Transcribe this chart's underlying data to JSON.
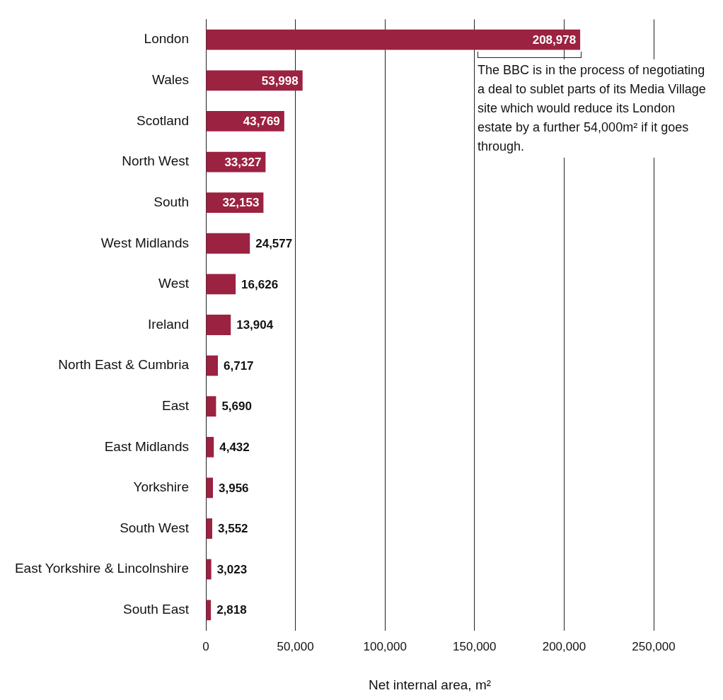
{
  "chart_data": {
    "type": "bar",
    "orientation": "horizontal",
    "xlabel": "Net internal area, m²",
    "categories": [
      "London",
      "Wales",
      "Scotland",
      "North West",
      "South",
      "West Midlands",
      "West",
      "Ireland",
      "North East & Cumbria",
      "East",
      "East Midlands",
      "Yorkshire",
      "South West",
      "East Yorkshire & Lincolnshire",
      "South East"
    ],
    "values": [
      208978,
      53998,
      43769,
      33327,
      32153,
      24577,
      16626,
      13904,
      6717,
      5690,
      4432,
      3956,
      3552,
      3023,
      2818
    ],
    "color": "#9b2240",
    "xlim": [
      0,
      250000
    ],
    "xticks": [
      {
        "value": 0,
        "label": "0"
      },
      {
        "value": 50000,
        "label": "50,000"
      },
      {
        "value": 100000,
        "label": "100,000"
      },
      {
        "value": 150000,
        "label": "150,000"
      },
      {
        "value": 200000,
        "label": "200,000"
      },
      {
        "value": 250000,
        "label": "250,000"
      }
    ],
    "value_labels": [
      "208,978",
      "53,998",
      "43,769",
      "33,327",
      "32,153",
      "24,577",
      "16,626",
      "13,904",
      "6,717",
      "5,690",
      "4,432",
      "3,956",
      "3,552",
      "3,023",
      "2,818"
    ],
    "grid": "x",
    "annotations": [
      "The BBC is in the process of negotiating a deal to sublet parts of its Media Village site which would reduce its London estate by a further 54,000m² if it goes through."
    ]
  }
}
